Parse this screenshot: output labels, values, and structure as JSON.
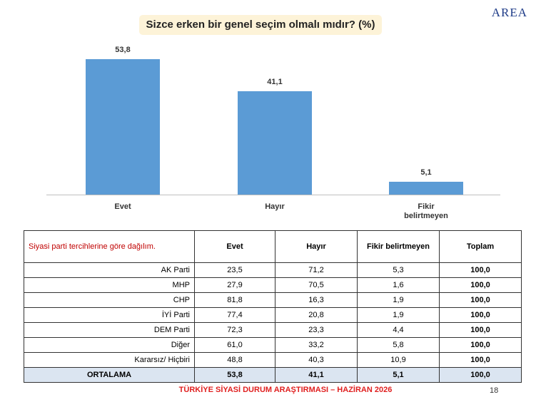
{
  "logo": "AREA",
  "chart_data": {
    "type": "bar",
    "title": "Sizce erken bir genel seçim olmalı mıdır? (%)",
    "categories": [
      "Evet",
      "Hayır",
      "Fikir belirtmeyen"
    ],
    "values": [
      53.8,
      41.1,
      5.1
    ],
    "value_labels": [
      "53,8",
      "41,1",
      "5,1"
    ],
    "color": "#5b9bd5"
  },
  "table": {
    "header": [
      "Siyasi parti tercihlerine göre dağılım.",
      "Evet",
      "Hayır",
      "Fikir belirtmeyen",
      "Toplam"
    ],
    "rows": [
      [
        "AK Parti",
        "23,5",
        "71,2",
        "5,3",
        "100,0"
      ],
      [
        "MHP",
        "27,9",
        "70,5",
        "1,6",
        "100,0"
      ],
      [
        "CHP",
        "81,8",
        "16,3",
        "1,9",
        "100,0"
      ],
      [
        "İYİ Parti",
        "77,4",
        "20,8",
        "1,9",
        "100,0"
      ],
      [
        "DEM Parti",
        "72,3",
        "23,3",
        "4,4",
        "100,0"
      ],
      [
        "Diğer",
        "61,0",
        "33,2",
        "5,8",
        "100,0"
      ],
      [
        "Kararsız/ Hiçbiri",
        "48,8",
        "40,3",
        "10,9",
        "100,0"
      ],
      [
        "ORTALAMA",
        "53,8",
        "41,1",
        "5,1",
        "100,0"
      ]
    ]
  },
  "footer": "TÜRKİYE SİYASİ DURUM ARAŞTIRMASI – HAZİRAN 2026",
  "page_number": "18"
}
